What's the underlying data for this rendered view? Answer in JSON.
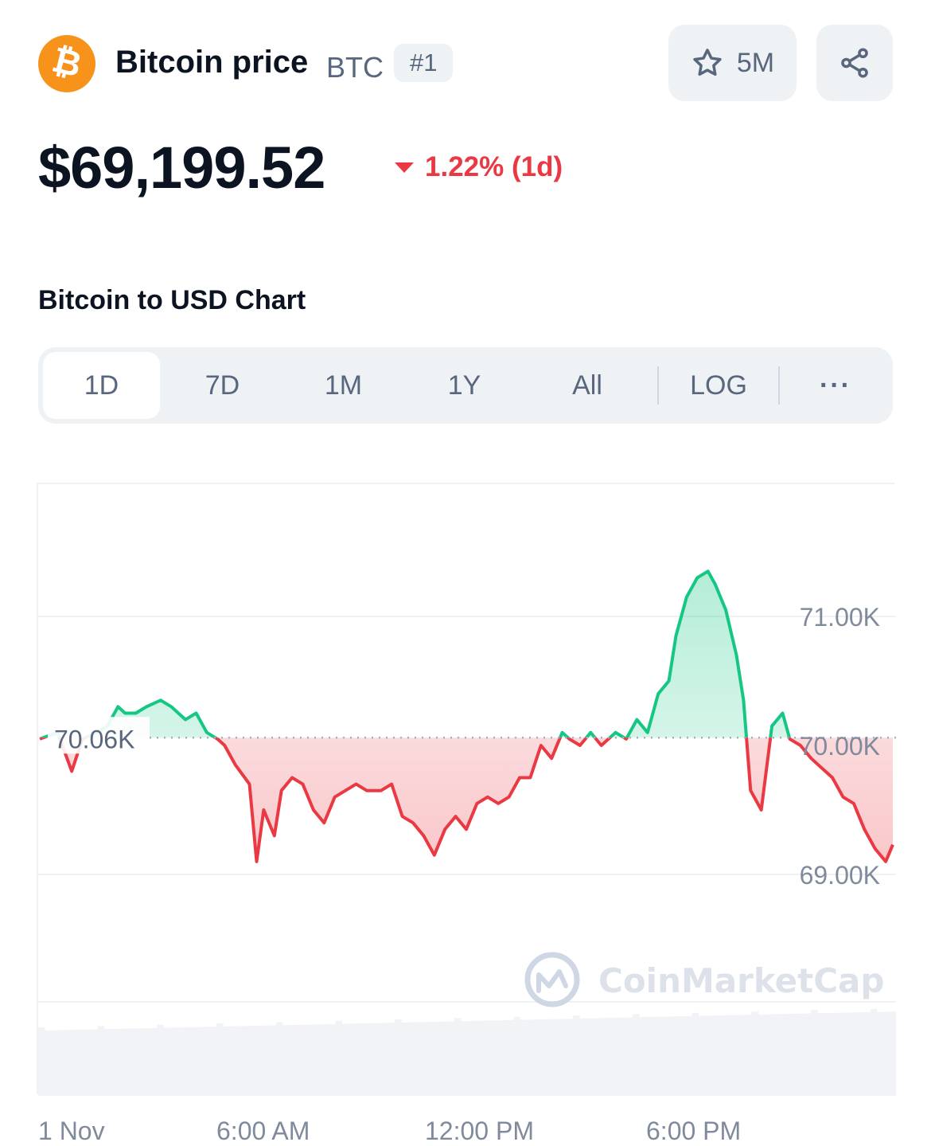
{
  "header": {
    "coin_logo": "bitcoin-logo",
    "coin_logo_glyph": "₿",
    "title": "Bitcoin price",
    "symbol": "BTC",
    "rank": "#1",
    "watchlist_count": "5M",
    "watch_icon": "star-icon",
    "share_icon": "share-icon"
  },
  "price": {
    "value": "$69,199.52",
    "change": "1.22% (1d)",
    "direction": "down",
    "down_color": "#ea3943",
    "up_color": "#16c784"
  },
  "chart_section": {
    "title": "Bitcoin to USD Chart"
  },
  "range_tabs": {
    "items": [
      "1D",
      "7D",
      "1M",
      "1Y",
      "All"
    ],
    "active": "1D",
    "log_label": "LOG",
    "more_label": "···"
  },
  "chart_data": {
    "type": "line",
    "reference_label": "70.06K",
    "reference_value": 70060,
    "y_ticks": [
      {
        "value": 71000,
        "label": "71.00K"
      },
      {
        "value": 70000,
        "label": "70.00K"
      },
      {
        "value": 69000,
        "label": "69.00K"
      }
    ],
    "x_ticks": [
      {
        "t": 0,
        "label": "1 Nov"
      },
      {
        "t": 6,
        "label": "6:00 AM"
      },
      {
        "t": 12,
        "label": "12:00 PM"
      },
      {
        "t": 18,
        "label": "6:00 PM"
      }
    ],
    "x_range": [
      0,
      24
    ],
    "y_range": [
      68000,
      71500
    ],
    "watermark": "CoinMarketCap",
    "series": [
      {
        "t": [
          0,
          0.5,
          0.9,
          1.2,
          1.6,
          1.9,
          2.2,
          2.4,
          2.7,
          3.0,
          3.4,
          3.7,
          4.1,
          4.4,
          4.7,
          5.0,
          5.2,
          5.5,
          5.9,
          6.1,
          6.3,
          6.6,
          6.8,
          7.1,
          7.4,
          7.7,
          8.0,
          8.3,
          8.6,
          8.9,
          9.2,
          9.6,
          9.9,
          10.2,
          10.5,
          10.8,
          11.1,
          11.4,
          11.7,
          12.0,
          12.3,
          12.6,
          12.9,
          13.2,
          13.5,
          13.8,
          14.1,
          14.4,
          14.7,
          14.9,
          15.2,
          15.5,
          15.8,
          16.2,
          16.5,
          16.8,
          17.1,
          17.4,
          17.7,
          17.9,
          18.2,
          18.5,
          18.8,
          19.0,
          19.3,
          19.6,
          19.8,
          20.0,
          20.3,
          20.6,
          20.9,
          21.1,
          21.4,
          21.7,
          21.9,
          22.3,
          22.6,
          22.9,
          23.2,
          23.5,
          23.8,
          24.0
        ],
        "price": [
          70050,
          70100,
          69800,
          70050,
          70100,
          70150,
          70300,
          70250,
          70250,
          70300,
          70350,
          70300,
          70200,
          70250,
          70100,
          70050,
          70000,
          69850,
          69700,
          69100,
          69500,
          69300,
          69650,
          69750,
          69700,
          69500,
          69400,
          69600,
          69650,
          69700,
          69650,
          69650,
          69700,
          69450,
          69400,
          69300,
          69150,
          69350,
          69450,
          69350,
          69550,
          69600,
          69550,
          69600,
          69750,
          69750,
          70000,
          69900,
          70100,
          70050,
          70000,
          70100,
          70000,
          70100,
          70050,
          70200,
          70100,
          70400,
          70500,
          70850,
          71150,
          71300,
          71350,
          71250,
          71050,
          70700,
          70350,
          69650,
          69500,
          70150,
          70250,
          70050,
          70000,
          69900,
          69850,
          69750,
          69600,
          69550,
          69350,
          69200,
          69100,
          69230
        ]
      }
    ]
  }
}
